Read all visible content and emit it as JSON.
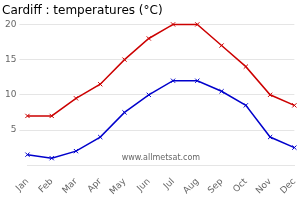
{
  "chart_data": {
    "type": "line",
    "title": "Cardiff : temperatures (°C)",
    "categories": [
      "Jan",
      "Feb",
      "Mar",
      "Apr",
      "May",
      "Jun",
      "Jul",
      "Aug",
      "Sep",
      "Oct",
      "Nov",
      "Dec"
    ],
    "series": [
      {
        "color": "#cc0000",
        "marker": "x",
        "values": [
          7,
          7,
          9.5,
          11.5,
          15,
          18,
          20,
          20,
          17,
          14,
          10,
          8.5
        ]
      },
      {
        "color": "#0000cc",
        "marker": "x",
        "values": [
          1.5,
          1,
          2,
          4,
          7.5,
          10,
          12,
          12,
          10.5,
          8.5,
          4,
          2.5
        ]
      }
    ],
    "ylim": [
      0,
      20
    ],
    "yticks": [
      5,
      10,
      15,
      20
    ],
    "grid": true,
    "annotations": [
      "www.allmetsat.com"
    ]
  }
}
